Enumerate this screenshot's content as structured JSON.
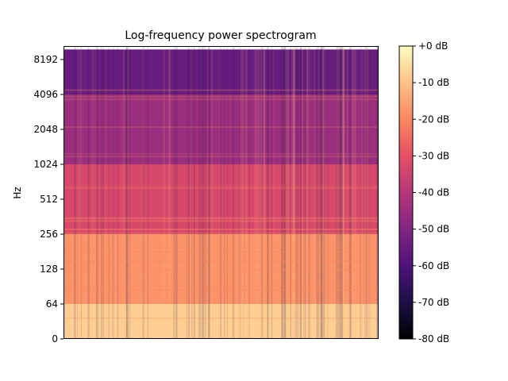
{
  "chart_data": {
    "type": "heatmap",
    "title": "Log-frequency power spectrogram",
    "xlabel": "",
    "ylabel": "Hz",
    "y_scale": "log (symlog near 0)",
    "y_ticks": [
      0,
      64,
      128,
      256,
      512,
      1024,
      2048,
      4096,
      8192
    ],
    "y_tick_labels": [
      "0",
      "64",
      "128",
      "256",
      "512",
      "1024",
      "2048",
      "4096",
      "8192"
    ],
    "x_ticks": [],
    "colormap": "magma",
    "colorbar": {
      "range_db": [
        -80,
        0
      ],
      "ticks": [
        0,
        -10,
        -20,
        -30,
        -40,
        -50,
        -60,
        -70,
        -80
      ],
      "tick_labels": [
        "+0 dB",
        "-10 dB",
        "-20 dB",
        "-30 dB",
        "-40 dB",
        "-50 dB",
        "-60 dB",
        "-70 dB",
        "-80 dB"
      ]
    },
    "approx_levels_db": [
      {
        "freq_band_hz": [
          0,
          64
        ],
        "level_db": -8
      },
      {
        "freq_band_hz": [
          64,
          256
        ],
        "level_db": -18
      },
      {
        "freq_band_hz": [
          256,
          1024
        ],
        "level_db": -33
      },
      {
        "freq_band_hz": [
          1024,
          4096
        ],
        "level_db": -45
      },
      {
        "freq_band_hz": [
          4096,
          10000
        ],
        "level_db": -55
      }
    ]
  }
}
